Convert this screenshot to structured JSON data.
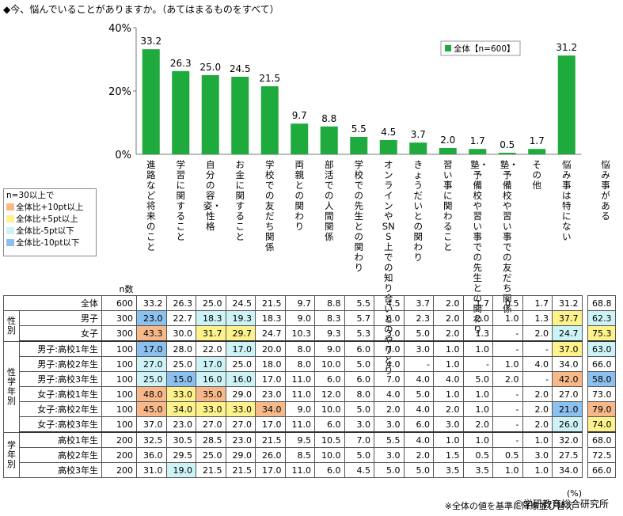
{
  "title": "◆今、悩んでいることがありますか。（あてはまるものをすべて）",
  "chart_data": {
    "type": "bar",
    "series_name": "全体【n=600】",
    "bar_color": "#1eaa3c",
    "y_ticks": [
      "40%",
      "20%",
      "0%"
    ],
    "ylim": [
      0,
      40
    ],
    "categories": [
      "進路など将来のこと",
      "学習に関すること",
      "自分の容姿・性格",
      "お金に関すること",
      "学校での友だち関係",
      "両親との関わり",
      "部活での人間関係",
      "学校での先生との関わり",
      "オンラインやSNS上での知り合いとのやりとり",
      "きょうだいとの関わり",
      "習い事に関わること",
      "塾・予備校や習い事での先生との関わり",
      "塾・予備校や習い事での友だち関係",
      "その他",
      "悩み事は特にない"
    ],
    "values": [
      33.2,
      26.3,
      25.0,
      24.5,
      21.5,
      9.7,
      8.8,
      5.5,
      4.5,
      3.7,
      2.0,
      1.7,
      0.5,
      1.7,
      31.2
    ],
    "value_labels": [
      "33.2",
      "26.3",
      "25.0",
      "24.5",
      "21.5",
      "9.7",
      "8.8",
      "5.5",
      "4.5",
      "3.7",
      "2.0",
      "1.7",
      "0.5",
      "1.7",
      "31.2"
    ],
    "extra_column": "悩み事がある"
  },
  "legend": {
    "title": "n=30以上で",
    "items": [
      {
        "label": "全体比+10pt以上",
        "color": "#f8b98a"
      },
      {
        "label": "全体比+5pt以上",
        "color": "#fdf28c"
      },
      {
        "label": "全体比-5pt以下",
        "color": "#cdf3f7"
      },
      {
        "label": "全体比-10pt以下",
        "color": "#8cc0ef"
      }
    ]
  },
  "table": {
    "n_header": "n数",
    "rows": [
      {
        "group": "",
        "label": "全体",
        "n": "600",
        "values": [
          "33.2",
          "26.3",
          "25.0",
          "24.5",
          "21.5",
          "9.7",
          "8.8",
          "5.5",
          "4.5",
          "3.7",
          "2.0",
          "1.7",
          "0.5",
          "1.7",
          "31.2"
        ],
        "extra": "68.8",
        "hl": [
          "",
          "",
          "",
          "",
          "",
          "",
          "",
          "",
          "",
          "",
          "",
          "",
          "",
          "",
          ""
        ],
        "ehl": ""
      },
      {
        "group": "性別",
        "label": "男子",
        "n": "300",
        "values": [
          "23.0",
          "22.7",
          "18.3",
          "19.3",
          "18.3",
          "9.0",
          "8.3",
          "5.7",
          "6.0",
          "2.3",
          "2.0",
          "2.0",
          "1.0",
          "1.3",
          "37.7"
        ],
        "extra": "62.3",
        "hl": [
          "d",
          "",
          "c",
          "c",
          "",
          "",
          "",
          "",
          "",
          "",
          "",
          "",
          "",
          "",
          "y"
        ],
        "ehl": "c"
      },
      {
        "group": "",
        "label": "女子",
        "n": "300",
        "values": [
          "43.3",
          "30.0",
          "31.7",
          "29.7",
          "24.7",
          "10.3",
          "9.3",
          "5.3",
          "3.0",
          "5.0",
          "2.0",
          "1.3",
          "-",
          "2.0",
          "24.7"
        ],
        "extra": "75.3",
        "hl": [
          "o",
          "",
          "y",
          "y",
          "",
          "",
          "",
          "",
          "",
          "",
          "",
          "",
          "",
          "",
          "c"
        ],
        "ehl": "y"
      },
      {
        "group": "性学年別",
        "label": "男子:高校1年生",
        "n": "100",
        "values": [
          "17.0",
          "28.0",
          "22.0",
          "17.0",
          "20.0",
          "8.0",
          "9.0",
          "6.0",
          "7.0",
          "3.0",
          "1.0",
          "1.0",
          "-",
          "-",
          "37.0"
        ],
        "extra": "63.0",
        "hl": [
          "d",
          "",
          "",
          "c",
          "",
          "",
          "",
          "",
          "",
          "",
          "",
          "",
          "",
          "",
          "y"
        ],
        "ehl": "c"
      },
      {
        "group": "",
        "label": "男子:高校2年生",
        "n": "100",
        "values": [
          "27.0",
          "25.0",
          "17.0",
          "25.0",
          "18.0",
          "8.0",
          "10.0",
          "5.0",
          "4.0",
          "-",
          "1.0",
          "-",
          "1.0",
          "4.0",
          "34.0"
        ],
        "extra": "66.0",
        "hl": [
          "c",
          "",
          "c",
          "",
          "",
          "",
          "",
          "",
          "",
          "",
          "",
          "",
          "",
          "",
          ""
        ],
        "ehl": ""
      },
      {
        "group": "",
        "label": "男子:高校3年生",
        "n": "100",
        "values": [
          "25.0",
          "15.0",
          "16.0",
          "16.0",
          "17.0",
          "11.0",
          "6.0",
          "6.0",
          "7.0",
          "4.0",
          "4.0",
          "5.0",
          "2.0",
          "-",
          "42.0"
        ],
        "extra": "58.0",
        "hl": [
          "c",
          "d",
          "c",
          "c",
          "",
          "",
          "",
          "",
          "",
          "",
          "",
          "",
          "",
          "",
          "o"
        ],
        "ehl": "d"
      },
      {
        "group": "",
        "label": "女子:高校1年生",
        "n": "100",
        "values": [
          "48.0",
          "33.0",
          "35.0",
          "29.0",
          "23.0",
          "11.0",
          "12.0",
          "8.0",
          "4.0",
          "5.0",
          "1.0",
          "1.0",
          "-",
          "2.0",
          "27.0"
        ],
        "extra": "73.0",
        "hl": [
          "o",
          "y",
          "o",
          "",
          "",
          "",
          "",
          "",
          "",
          "",
          "",
          "",
          "",
          "",
          ""
        ],
        "ehl": ""
      },
      {
        "group": "",
        "label": "女子:高校2年生",
        "n": "100",
        "values": [
          "45.0",
          "34.0",
          "33.0",
          "33.0",
          "34.0",
          "9.0",
          "10.0",
          "5.0",
          "2.0",
          "4.0",
          "2.0",
          "1.0",
          "-",
          "2.0",
          "21.0"
        ],
        "extra": "79.0",
        "hl": [
          "o",
          "y",
          "y",
          "y",
          "o",
          "",
          "",
          "",
          "",
          "",
          "",
          "",
          "",
          "",
          "d"
        ],
        "ehl": "o"
      },
      {
        "group": "",
        "label": "女子:高校3年生",
        "n": "100",
        "values": [
          "37.0",
          "23.0",
          "27.0",
          "27.0",
          "17.0",
          "11.0",
          "6.0",
          "3.0",
          "3.0",
          "6.0",
          "3.0",
          "2.0",
          "-",
          "2.0",
          "26.0"
        ],
        "extra": "74.0",
        "hl": [
          "",
          "",
          "",
          "",
          "",
          "",
          "",
          "",
          "",
          "",
          "",
          "",
          "",
          "",
          "c"
        ],
        "ehl": "y"
      },
      {
        "group": "学年別",
        "label": "高校1年生",
        "n": "200",
        "values": [
          "32.5",
          "30.5",
          "28.5",
          "23.0",
          "21.5",
          "9.5",
          "10.5",
          "7.0",
          "5.5",
          "4.0",
          "1.0",
          "1.0",
          "-",
          "1.0",
          "32.0"
        ],
        "extra": "68.0",
        "hl": [
          "",
          "",
          "",
          "",
          "",
          "",
          "",
          "",
          "",
          "",
          "",
          "",
          "",
          "",
          ""
        ],
        "ehl": ""
      },
      {
        "group": "",
        "label": "高校2年生",
        "n": "200",
        "values": [
          "36.0",
          "29.5",
          "25.0",
          "29.0",
          "26.0",
          "8.5",
          "10.0",
          "5.0",
          "3.0",
          "2.0",
          "1.5",
          "0.5",
          "0.5",
          "3.0",
          "27.5"
        ],
        "extra": "72.5",
        "hl": [
          "",
          "",
          "",
          "",
          "",
          "",
          "",
          "",
          "",
          "",
          "",
          "",
          "",
          "",
          ""
        ],
        "ehl": ""
      },
      {
        "group": "",
        "label": "高校3年生",
        "n": "200",
        "values": [
          "31.0",
          "19.0",
          "21.5",
          "21.5",
          "17.0",
          "11.0",
          "6.0",
          "4.5",
          "5.0",
          "5.0",
          "3.5",
          "3.5",
          "1.0",
          "1.0",
          "34.0"
        ],
        "extra": "66.0",
        "hl": [
          "",
          "c",
          "",
          "",
          "",
          "",
          "",
          "",
          "",
          "",
          "",
          "",
          "",
          "",
          ""
        ],
        "ehl": ""
      }
    ]
  },
  "footer": {
    "unit": "(%)",
    "note": "※全体の値を基準に降順並び替え",
    "copyright": "©学研教育総合研究所"
  }
}
